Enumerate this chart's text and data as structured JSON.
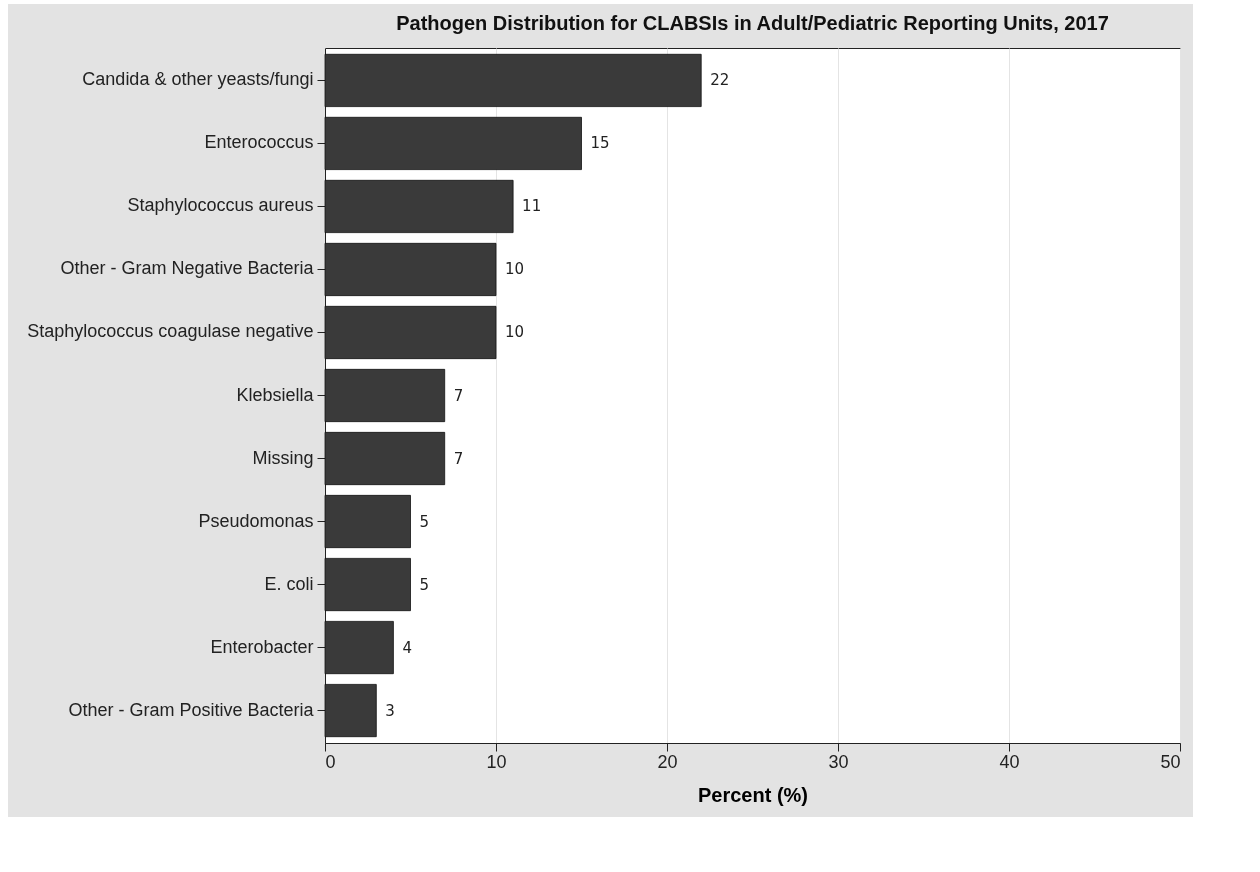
{
  "chart_data": {
    "type": "bar",
    "orientation": "horizontal",
    "title": "Pathogen Distribution for CLABSIs in Adult/Pediatric Reporting Units, 2017",
    "xlabel": "Percent (%)",
    "categories": [
      "Candida & other yeasts/fungi",
      "Enterococcus",
      "Staphylococcus aureus",
      "Other - Gram Negative Bacteria",
      "Staphylococcus coagulase negative",
      "Klebsiella",
      "Missing",
      "Pseudomonas",
      "E. coli",
      "Enterobacter",
      "Other - Gram Positive Bacteria"
    ],
    "values": [
      22,
      15,
      11,
      10,
      10,
      7,
      7,
      5,
      5,
      4,
      3
    ],
    "color": "#3a3a3a",
    "xlim": [
      0,
      50
    ],
    "xticks": [
      0,
      10,
      20,
      30,
      40,
      50
    ],
    "grid": "x",
    "data_labels": true
  }
}
